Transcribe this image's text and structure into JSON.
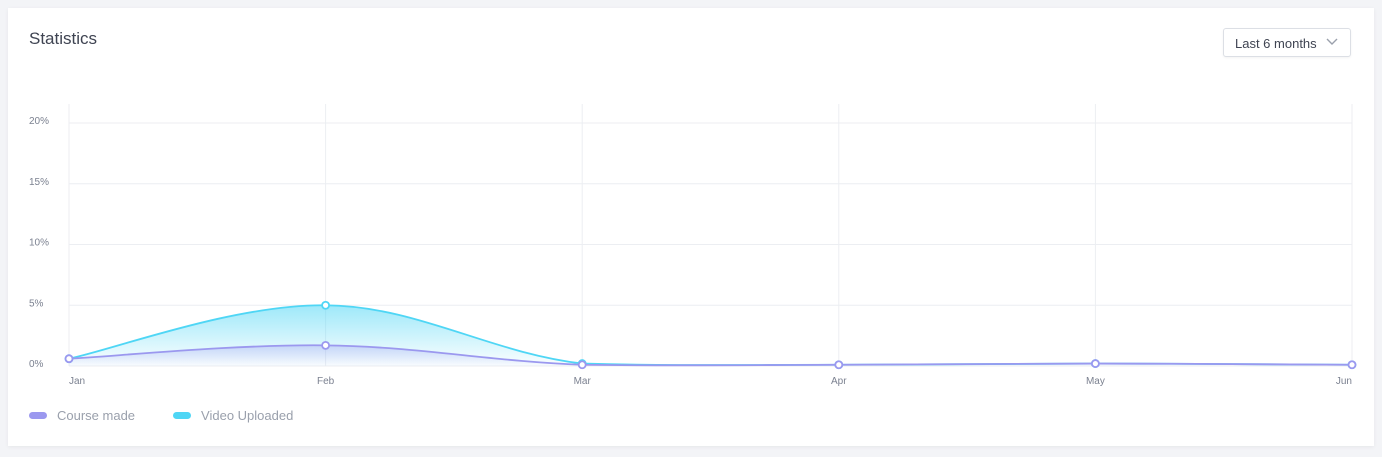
{
  "header": {
    "title": "Statistics"
  },
  "range_select": {
    "selected": "Last 6 months"
  },
  "icons": {
    "select": "chevron-down-icon"
  },
  "colors": {
    "course": "#9b98ef",
    "video": "#4fd6f5",
    "grid": "#eceef2"
  },
  "chart_data": {
    "type": "area",
    "categories": [
      "Jan",
      "Feb",
      "Mar",
      "Apr",
      "May",
      "Jun"
    ],
    "series": [
      {
        "name": "Course made",
        "values": [
          0.6,
          1.7,
          0.1,
          0.1,
          0.2,
          0.1
        ]
      },
      {
        "name": "Video Uploaded",
        "values": [
          0.6,
          5.0,
          0.2,
          0.1,
          0.2,
          0.1
        ]
      }
    ],
    "yticks": [
      "0%",
      "5%",
      "10%",
      "15%",
      "20%"
    ],
    "ylim": [
      0,
      20
    ],
    "grid": true,
    "legend": "bottom-left"
  }
}
